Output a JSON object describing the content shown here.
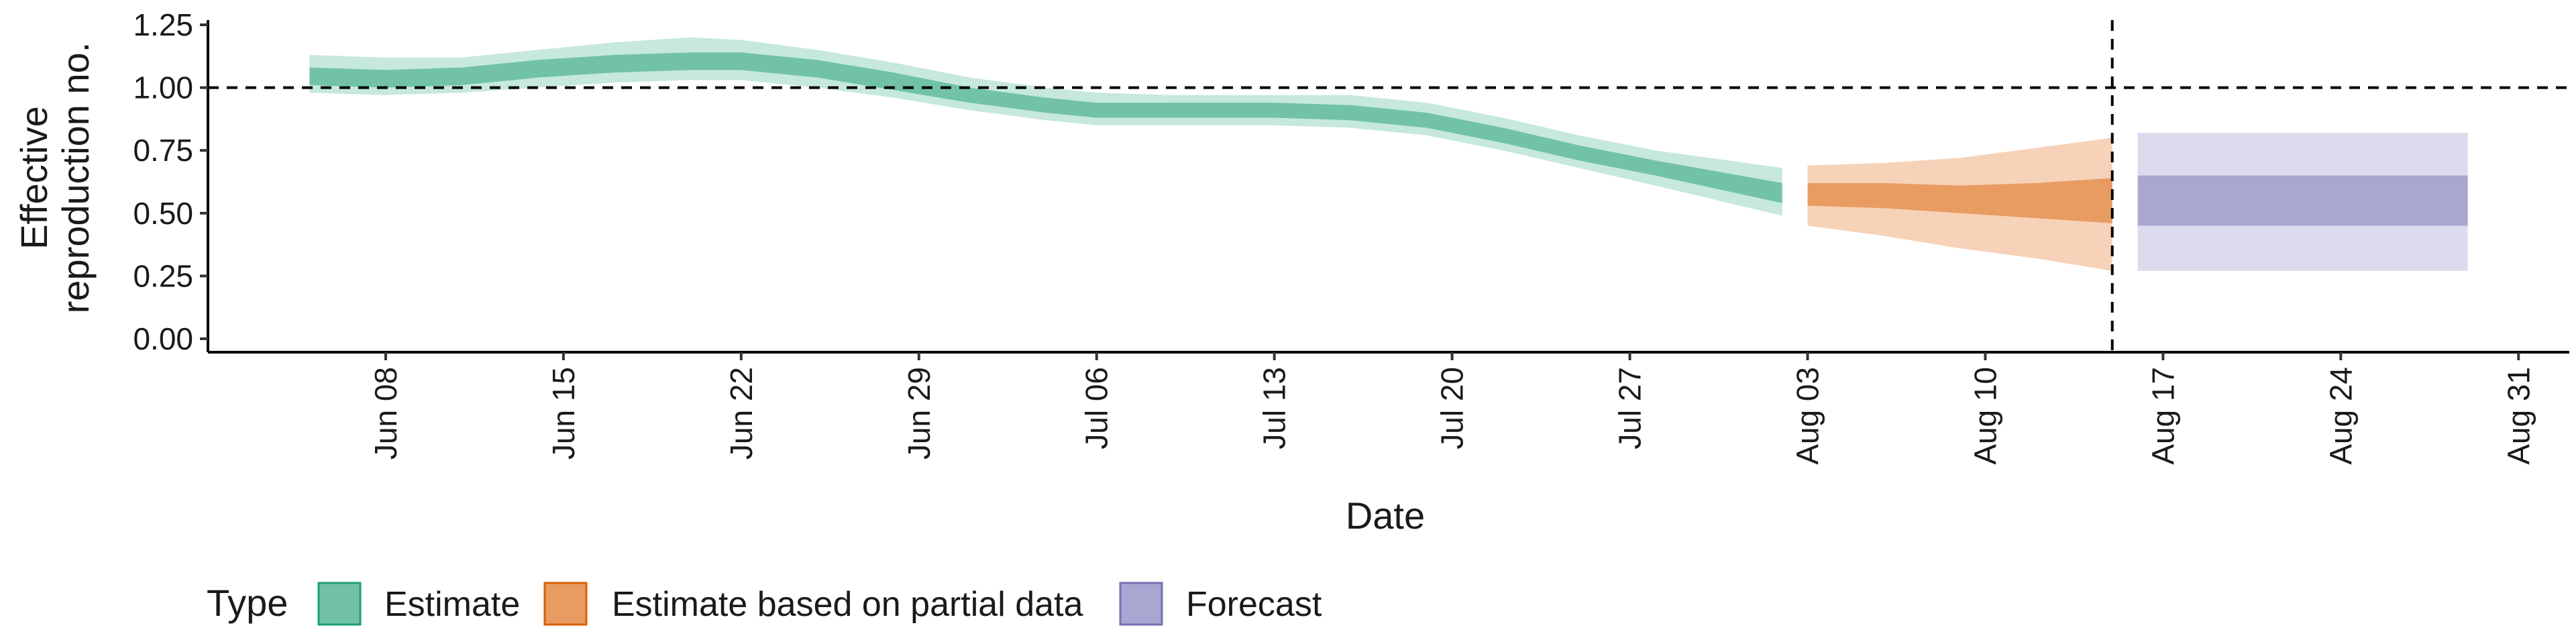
{
  "chart_data": {
    "type": "area",
    "xlabel": "Date",
    "ylabel": [
      "Effective",
      "reproduction no."
    ],
    "ylim": [
      0,
      1.25
    ],
    "yticks": [
      0,
      0.25,
      0.5,
      0.75,
      1.0,
      1.25
    ],
    "ytick_labels": [
      "0.00",
      "0.25",
      "0.50",
      "0.75",
      "1.00",
      "1.25"
    ],
    "x_range": [
      "2020-06-01",
      "2020-09-02"
    ],
    "xticks": [
      {
        "date": "2020-06-08",
        "label": "Jun 08"
      },
      {
        "date": "2020-06-15",
        "label": "Jun 15"
      },
      {
        "date": "2020-06-22",
        "label": "Jun 22"
      },
      {
        "date": "2020-06-29",
        "label": "Jun 29"
      },
      {
        "date": "2020-07-06",
        "label": "Jul 06"
      },
      {
        "date": "2020-07-13",
        "label": "Jul 13"
      },
      {
        "date": "2020-07-20",
        "label": "Jul 20"
      },
      {
        "date": "2020-07-27",
        "label": "Jul 27"
      },
      {
        "date": "2020-08-03",
        "label": "Aug 03"
      },
      {
        "date": "2020-08-10",
        "label": "Aug 10"
      },
      {
        "date": "2020-08-17",
        "label": "Aug 17"
      },
      {
        "date": "2020-08-24",
        "label": "Aug 24"
      },
      {
        "date": "2020-08-31",
        "label": "Aug 31"
      }
    ],
    "reference_lines": {
      "horizontal_y": 1.0,
      "vertical_date": "2020-08-15"
    },
    "grid": false,
    "legend_position": "bottom",
    "legend": {
      "title": "Type",
      "items": [
        {
          "label": "Estimate",
          "fill": "#71c2a8",
          "stroke": "#1b9e77"
        },
        {
          "label": "Estimate based on partial data",
          "fill": "#e99c61",
          "stroke": "#d95f02"
        },
        {
          "label": "Forecast",
          "fill": "#a9a6d2",
          "stroke": "#7570b3"
        }
      ]
    },
    "series": [
      {
        "name": "Estimate",
        "color_inner": "#71c2a8",
        "color_outer": "#c6e8dd",
        "points": [
          {
            "date": "2020-06-05",
            "median": 1.05,
            "lower_50": 1.01,
            "upper_50": 1.08,
            "lower_90": 0.98,
            "upper_90": 1.13
          },
          {
            "date": "2020-06-08",
            "median": 1.04,
            "lower_50": 1.0,
            "upper_50": 1.07,
            "lower_90": 0.97,
            "upper_90": 1.12
          },
          {
            "date": "2020-06-11",
            "median": 1.05,
            "lower_50": 1.01,
            "upper_50": 1.08,
            "lower_90": 0.98,
            "upper_90": 1.12
          },
          {
            "date": "2020-06-14",
            "median": 1.08,
            "lower_50": 1.04,
            "upper_50": 1.11,
            "lower_90": 1.0,
            "upper_90": 1.15
          },
          {
            "date": "2020-06-17",
            "median": 1.1,
            "lower_50": 1.06,
            "upper_50": 1.13,
            "lower_90": 1.02,
            "upper_90": 1.18
          },
          {
            "date": "2020-06-20",
            "median": 1.11,
            "lower_50": 1.07,
            "upper_50": 1.14,
            "lower_90": 1.03,
            "upper_90": 1.2
          },
          {
            "date": "2020-06-22",
            "median": 1.11,
            "lower_50": 1.07,
            "upper_50": 1.14,
            "lower_90": 1.03,
            "upper_90": 1.19
          },
          {
            "date": "2020-06-25",
            "median": 1.08,
            "lower_50": 1.04,
            "upper_50": 1.11,
            "lower_90": 1.0,
            "upper_90": 1.15
          },
          {
            "date": "2020-06-28",
            "median": 1.03,
            "lower_50": 0.99,
            "upper_50": 1.06,
            "lower_90": 0.96,
            "upper_90": 1.1
          },
          {
            "date": "2020-07-01",
            "median": 0.97,
            "lower_50": 0.94,
            "upper_50": 1.0,
            "lower_90": 0.91,
            "upper_90": 1.04
          },
          {
            "date": "2020-07-04",
            "median": 0.93,
            "lower_50": 0.9,
            "upper_50": 0.96,
            "lower_90": 0.87,
            "upper_90": 1.0
          },
          {
            "date": "2020-07-06",
            "median": 0.91,
            "lower_50": 0.88,
            "upper_50": 0.94,
            "lower_90": 0.85,
            "upper_90": 0.98
          },
          {
            "date": "2020-07-09",
            "median": 0.91,
            "lower_50": 0.88,
            "upper_50": 0.94,
            "lower_90": 0.85,
            "upper_90": 0.97
          },
          {
            "date": "2020-07-13",
            "median": 0.91,
            "lower_50": 0.88,
            "upper_50": 0.94,
            "lower_90": 0.85,
            "upper_90": 0.97
          },
          {
            "date": "2020-07-16",
            "median": 0.9,
            "lower_50": 0.87,
            "upper_50": 0.93,
            "lower_90": 0.84,
            "upper_90": 0.97
          },
          {
            "date": "2020-07-19",
            "median": 0.87,
            "lower_50": 0.84,
            "upper_50": 0.9,
            "lower_90": 0.81,
            "upper_90": 0.94
          },
          {
            "date": "2020-07-22",
            "median": 0.81,
            "lower_50": 0.78,
            "upper_50": 0.84,
            "lower_90": 0.75,
            "upper_90": 0.88
          },
          {
            "date": "2020-07-25",
            "median": 0.74,
            "lower_50": 0.71,
            "upper_50": 0.77,
            "lower_90": 0.68,
            "upper_90": 0.81
          },
          {
            "date": "2020-07-28",
            "median": 0.68,
            "lower_50": 0.65,
            "upper_50": 0.71,
            "lower_90": 0.61,
            "upper_90": 0.75
          },
          {
            "date": "2020-08-02",
            "median": 0.58,
            "lower_50": 0.54,
            "upper_50": 0.62,
            "lower_90": 0.49,
            "upper_90": 0.68
          }
        ]
      },
      {
        "name": "Estimate based on partial data",
        "color_inner": "#e99c61",
        "color_outer": "#f6d2b8",
        "points": [
          {
            "date": "2020-08-03",
            "median": 0.57,
            "lower_50": 0.53,
            "upper_50": 0.62,
            "lower_90": 0.45,
            "upper_90": 0.69
          },
          {
            "date": "2020-08-06",
            "median": 0.57,
            "lower_50": 0.52,
            "upper_50": 0.62,
            "lower_90": 0.41,
            "upper_90": 0.7
          },
          {
            "date": "2020-08-09",
            "median": 0.55,
            "lower_50": 0.5,
            "upper_50": 0.61,
            "lower_90": 0.36,
            "upper_90": 0.72
          },
          {
            "date": "2020-08-12",
            "median": 0.55,
            "lower_50": 0.48,
            "upper_50": 0.62,
            "lower_90": 0.32,
            "upper_90": 0.76
          },
          {
            "date": "2020-08-15",
            "median": 0.56,
            "lower_50": 0.46,
            "upper_50": 0.64,
            "lower_90": 0.27,
            "upper_90": 0.8
          }
        ]
      },
      {
        "name": "Forecast",
        "color_inner": "#a9a6d2",
        "color_outer": "#dcdbee",
        "points": [
          {
            "date": "2020-08-16",
            "median": 0.55,
            "lower_50": 0.45,
            "upper_50": 0.65,
            "lower_90": 0.27,
            "upper_90": 0.82
          },
          {
            "date": "2020-08-29",
            "median": 0.55,
            "lower_50": 0.45,
            "upper_50": 0.65,
            "lower_90": 0.27,
            "upper_90": 0.82
          }
        ]
      }
    ]
  }
}
